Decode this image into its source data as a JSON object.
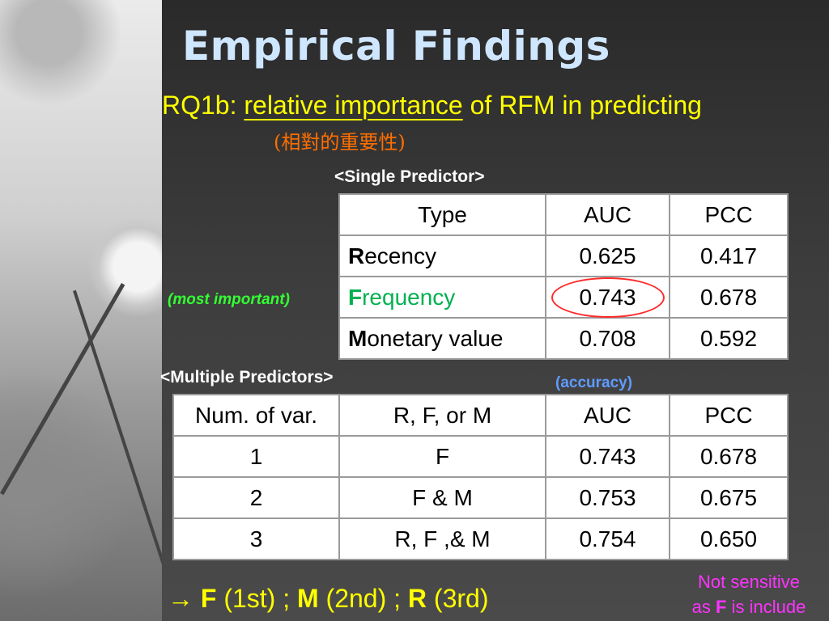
{
  "slide": {
    "title": "Empirical Findings",
    "rq_prefix": "RQ1b: ",
    "rq_underlined": "relative importance",
    "rq_suffix": " of RFM in predicting",
    "chinese_note": "(相對的重要性)",
    "single_label": "<Single Predictor>",
    "multiple_label": "<Multiple Predictors>",
    "most_important": "(most important)",
    "accuracy": "(accuracy)"
  },
  "single_table": {
    "headers": [
      "Type",
      "AUC",
      "PCC"
    ],
    "rows": [
      {
        "initial": "R",
        "rest": "ecency",
        "auc": "0.625",
        "pcc": "0.417"
      },
      {
        "initial": "F",
        "rest": "requency",
        "auc": "0.743",
        "pcc": "0.678"
      },
      {
        "initial": "M",
        "rest": "onetary value",
        "auc": "0.708",
        "pcc": "0.592"
      }
    ]
  },
  "multiple_table": {
    "headers": [
      "Num. of var.",
      "R, F, or M",
      "AUC",
      "PCC"
    ],
    "rows": [
      [
        "1",
        "F",
        "0.743",
        "0.678"
      ],
      [
        "2",
        "F & M",
        "0.753",
        "0.675"
      ],
      [
        "3",
        "R, F ,& M",
        "0.754",
        "0.650"
      ]
    ]
  },
  "ranking": {
    "arrow": "→",
    "first_letter": "F",
    "first_rank": " (1st) ; ",
    "second_letter": "M",
    "second_rank": " (2nd) ; ",
    "third_letter": "R",
    "third_rank": " (3rd)"
  },
  "side_note": {
    "line1": "Not sensitive",
    "line2_pre": "as ",
    "line2_bold": "F",
    "line2_post": " is include"
  },
  "colors": {
    "title": "#cfe6ff",
    "rq_text": "#ffff00",
    "chinese": "#ff6f00",
    "highlight_green": "#00b050",
    "circle": "#ff2a2a",
    "side_note": "#ff33ff"
  }
}
